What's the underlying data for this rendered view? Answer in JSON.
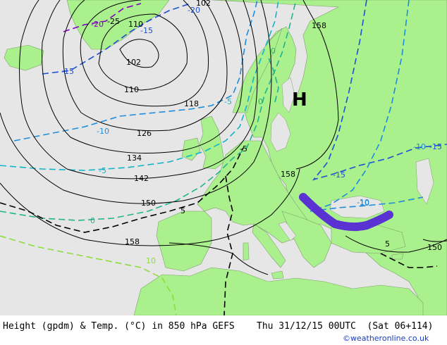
{
  "footer": {
    "title_left": "Height (gpdm) & Temp. (°C) in 850 hPa GEFS",
    "title_right": "Thu 31/12/15 00UTC  (Sat 06+114)",
    "credit": "©weatheronline.co.uk"
  },
  "pressure_center": {
    "symbol": "H"
  },
  "height_labels": [
    "102",
    "110",
    "118",
    "126",
    "134",
    "142",
    "150",
    "158",
    "158",
    "158",
    "150",
    "102",
    "110"
  ],
  "temp_labels": [
    "-15",
    "-20",
    "-25",
    "-15",
    "-10",
    "-5",
    "0",
    "5",
    "10",
    "-15",
    "-10",
    "-10",
    "10",
    "-5",
    "5",
    "0",
    "0",
    "-15",
    "-5",
    "-20"
  ],
  "colors": {
    "land": "#aaf08c",
    "sea": "#e6e6e6",
    "height_contour": "#000000",
    "temp_minus20": "#8000c0",
    "temp_minus15": "#1e50d2",
    "temp_minus10": "#1e8cdc",
    "temp_minus5": "#14b4c8",
    "temp_zero": "#1eb48c",
    "temp_plus5": "#000000",
    "temp_plus10": "#8cdc3c",
    "front": "#5a32d2"
  }
}
